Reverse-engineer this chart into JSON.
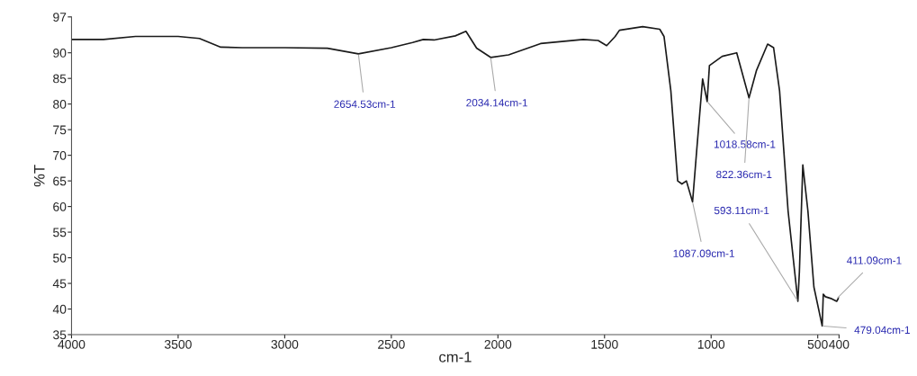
{
  "chart_data": {
    "type": "line",
    "xlabel": "cm-1",
    "ylabel": "%T",
    "xlim": [
      4000,
      400
    ],
    "ylim": [
      35,
      97
    ],
    "xticks": [
      4000,
      3500,
      3000,
      2500,
      2000,
      1500,
      1000,
      500,
      400
    ],
    "yticks": [
      35,
      40,
      45,
      50,
      55,
      60,
      65,
      70,
      75,
      80,
      85,
      90,
      97
    ],
    "grid": false,
    "legend": false,
    "marker": "none",
    "line_style": "solid",
    "series": [
      {
        "color": "#1a1a1a",
        "x": [
          4000,
          3850,
          3700,
          3500,
          3400,
          3300,
          3200,
          3000,
          2800,
          2654.53,
          2500,
          2400,
          2350,
          2300,
          2200,
          2150,
          2100,
          2034.14,
          1950,
          1800,
          1600,
          1530,
          1490,
          1450,
          1430,
          1321,
          1241,
          1221,
          1189,
          1157,
          1137,
          1116,
          1087.09,
          1068,
          1040,
          1018.58,
          1008,
          948,
          880,
          822.36,
          787,
          735,
          707,
          679,
          639,
          593.11,
          586,
          570,
          546,
          518,
          479.04,
          474,
          464,
          434,
          411.09,
          400
        ],
        "values": [
          92.6,
          92.6,
          93.2,
          93.2,
          92.8,
          91.1,
          91.0,
          91.0,
          90.9,
          89.8,
          91.0,
          92.0,
          92.6,
          92.5,
          93.3,
          94.2,
          90.9,
          89.1,
          89.6,
          91.8,
          92.6,
          92.4,
          91.4,
          93.2,
          94.4,
          95.1,
          94.6,
          93.2,
          82.6,
          65.0,
          64.4,
          65.0,
          60.9,
          70.8,
          84.9,
          80.5,
          87.5,
          89.3,
          90.0,
          81.2,
          86.6,
          91.7,
          91.0,
          82.6,
          59.1,
          41.5,
          47.3,
          68.1,
          59.1,
          44.3,
          36.7,
          42.9,
          42.4,
          42.0,
          41.5,
          42.3
        ]
      }
    ],
    "annotations": [
      {
        "text": "2654.53cm-1",
        "x": 2654.53,
        "y": 89.8
      },
      {
        "text": "2034.14cm-1",
        "x": 2034.14,
        "y": 89.1
      },
      {
        "text": "1087.09cm-1",
        "x": 1087.09,
        "y": 60.9
      },
      {
        "text": "1018.58cm-1",
        "x": 1018.58,
        "y": 80.5
      },
      {
        "text": "822.36cm-1",
        "x": 822.36,
        "y": 81.2
      },
      {
        "text": "593.11cm-1",
        "x": 593.11,
        "y": 41.5
      },
      {
        "text": "479.04cm-1",
        "x": 479.04,
        "y": 36.7
      },
      {
        "text": "411.09cm-1",
        "x": 411.09,
        "y": 42.0
      }
    ]
  }
}
